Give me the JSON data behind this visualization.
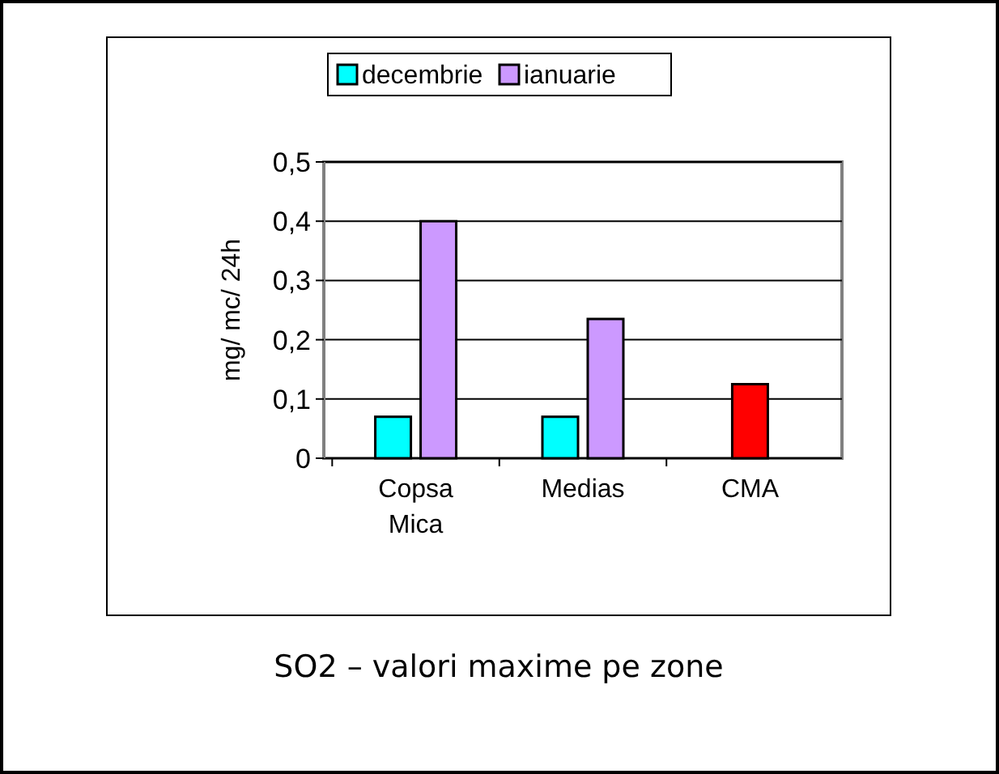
{
  "chart_data": {
    "type": "bar",
    "categories": [
      "Copsa Mica",
      "Medias",
      "CMA"
    ],
    "series": [
      {
        "name": "decembrie",
        "color": "#00ffff",
        "values": [
          0.07,
          0.07,
          null
        ]
      },
      {
        "name": "ianuarie",
        "color": "#cc99ff",
        "values": [
          0.4,
          0.235,
          null
        ]
      },
      {
        "color": "#ff0000",
        "values": [
          null,
          null,
          0.125
        ]
      }
    ],
    "ylabel": "mg/ mc/  24h",
    "ylim": [
      0,
      0.5
    ],
    "yticks": [
      {
        "value": 0,
        "label": "0"
      },
      {
        "value": 0.1,
        "label": "0,1"
      },
      {
        "value": 0.2,
        "label": "0,2"
      },
      {
        "value": 0.3,
        "label": "0,3"
      },
      {
        "value": 0.4,
        "label": "0,4"
      },
      {
        "value": 0.5,
        "label": "0,5"
      }
    ],
    "grid": "y",
    "legend": "top",
    "annotations": [
      "SO2 – valori maxime pe zone"
    ]
  }
}
